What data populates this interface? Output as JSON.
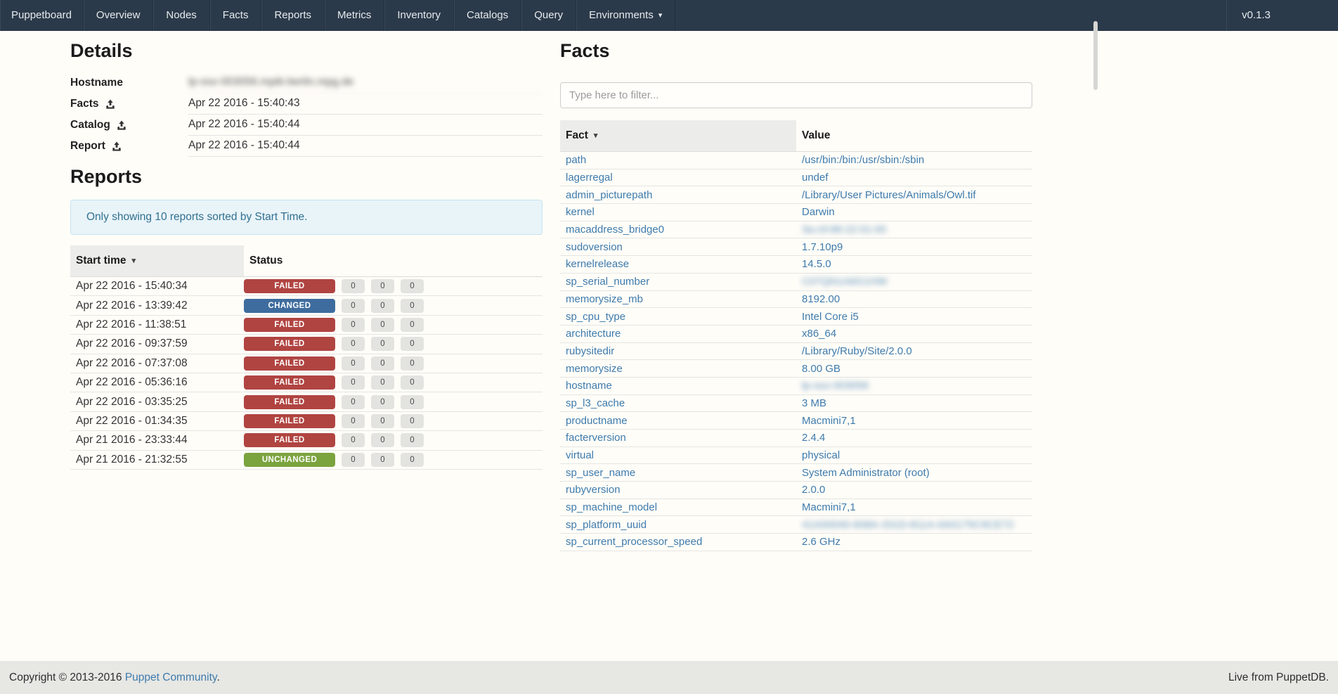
{
  "navbar": {
    "brand": "Puppetboard",
    "items": [
      "Overview",
      "Nodes",
      "Facts",
      "Reports",
      "Metrics",
      "Inventory",
      "Catalogs",
      "Query"
    ],
    "environments_label": "Environments",
    "version": "v0.1.3"
  },
  "details": {
    "title": "Details",
    "rows": [
      {
        "label": "Hostname",
        "has_upload_icon": false,
        "value": "lp-osx-003056.mpib-berlin.mpg.de",
        "blurred": true
      },
      {
        "label": "Facts",
        "has_upload_icon": true,
        "value": "Apr 22 2016 - 15:40:43",
        "blurred": false
      },
      {
        "label": "Catalog",
        "has_upload_icon": true,
        "value": "Apr 22 2016 - 15:40:44",
        "blurred": false
      },
      {
        "label": "Report",
        "has_upload_icon": true,
        "value": "Apr 22 2016 - 15:40:44",
        "blurred": false
      }
    ]
  },
  "reports": {
    "title": "Reports",
    "notice": "Only showing 10 reports sorted by Start Time.",
    "columns": {
      "start_time": "Start time",
      "status": "Status"
    },
    "sort_caret": "▾",
    "rows": [
      {
        "start_time": "Apr 22 2016 - 15:40:34",
        "status": "FAILED",
        "counts": [
          "0",
          "0",
          "0"
        ]
      },
      {
        "start_time": "Apr 22 2016 - 13:39:42",
        "status": "CHANGED",
        "counts": [
          "0",
          "0",
          "0"
        ]
      },
      {
        "start_time": "Apr 22 2016 - 11:38:51",
        "status": "FAILED",
        "counts": [
          "0",
          "0",
          "0"
        ]
      },
      {
        "start_time": "Apr 22 2016 - 09:37:59",
        "status": "FAILED",
        "counts": [
          "0",
          "0",
          "0"
        ]
      },
      {
        "start_time": "Apr 22 2016 - 07:37:08",
        "status": "FAILED",
        "counts": [
          "0",
          "0",
          "0"
        ]
      },
      {
        "start_time": "Apr 22 2016 - 05:36:16",
        "status": "FAILED",
        "counts": [
          "0",
          "0",
          "0"
        ]
      },
      {
        "start_time": "Apr 22 2016 - 03:35:25",
        "status": "FAILED",
        "counts": [
          "0",
          "0",
          "0"
        ]
      },
      {
        "start_time": "Apr 22 2016 - 01:34:35",
        "status": "FAILED",
        "counts": [
          "0",
          "0",
          "0"
        ]
      },
      {
        "start_time": "Apr 21 2016 - 23:33:44",
        "status": "FAILED",
        "counts": [
          "0",
          "0",
          "0"
        ]
      },
      {
        "start_time": "Apr 21 2016 - 21:32:55",
        "status": "UNCHANGED",
        "counts": [
          "0",
          "0",
          "0"
        ]
      }
    ]
  },
  "facts": {
    "title": "Facts",
    "filter_placeholder": "Type here to filter...",
    "columns": {
      "fact": "Fact",
      "value": "Value"
    },
    "sort_caret": "▾",
    "rows": [
      {
        "fact": "path",
        "value": "/usr/bin:/bin:/usr/sbin:/sbin",
        "blurred": false
      },
      {
        "fact": "lagerregal",
        "value": "undef",
        "blurred": false
      },
      {
        "fact": "admin_picturepath",
        "value": "/Library/User Pictures/Animals/Owl.tif",
        "blurred": false
      },
      {
        "fact": "kernel",
        "value": "Darwin",
        "blurred": false
      },
      {
        "fact": "macaddress_bridge0",
        "value": "3a:c9:86:22:01:00",
        "blurred": true
      },
      {
        "fact": "sudoversion",
        "value": "1.7.10p9",
        "blurred": false
      },
      {
        "fact": "kernelrelease",
        "value": "14.5.0",
        "blurred": false
      },
      {
        "fact": "sp_serial_number",
        "value": "C07QN1A6G1HW",
        "blurred": true
      },
      {
        "fact": "memorysize_mb",
        "value": "8192.00",
        "blurred": false
      },
      {
        "fact": "sp_cpu_type",
        "value": "Intel Core i5",
        "blurred": false
      },
      {
        "fact": "architecture",
        "value": "x86_64",
        "blurred": false
      },
      {
        "fact": "rubysitedir",
        "value": "/Library/Ruby/Site/2.0.0",
        "blurred": false
      },
      {
        "fact": "memorysize",
        "value": "8.00 GB",
        "blurred": false
      },
      {
        "fact": "hostname",
        "value": "lp-osx-003056",
        "blurred": true
      },
      {
        "fact": "sp_l3_cache",
        "value": "3 MB",
        "blurred": false
      },
      {
        "fact": "productname",
        "value": "Macmini7,1",
        "blurred": false
      },
      {
        "fact": "facterversion",
        "value": "2.4.4",
        "blurred": false
      },
      {
        "fact": "virtual",
        "value": "physical",
        "blurred": false
      },
      {
        "fact": "sp_user_name",
        "value": "System Administrator (root)",
        "blurred": false
      },
      {
        "fact": "rubyversion",
        "value": "2.0.0",
        "blurred": false
      },
      {
        "fact": "sp_machine_model",
        "value": "Macmini7,1",
        "blurred": false
      },
      {
        "fact": "sp_platform_uuid",
        "value": "41A00040-608A-331D-811A-0A0175C9CE72",
        "blurred": true
      },
      {
        "fact": "sp_current_processor_speed",
        "value": "2.6 GHz",
        "blurred": false
      }
    ]
  },
  "footer": {
    "copyright_prefix": "Copyright © 2013-2016 ",
    "copyright_link": "Puppet Community",
    "copyright_suffix": ".",
    "right_text": "Live from PuppetDB."
  },
  "colors": {
    "navbar_bg": "#2b3a4a",
    "link": "#3e7bad",
    "status": {
      "FAILED": "#b04441",
      "CHANGED": "#3e6c9e",
      "UNCHANGED": "#7ba33e"
    },
    "count_pill_bg": "#e3e3e0",
    "alert_bg": "#e9f4f9",
    "alert_text": "#31708f"
  }
}
